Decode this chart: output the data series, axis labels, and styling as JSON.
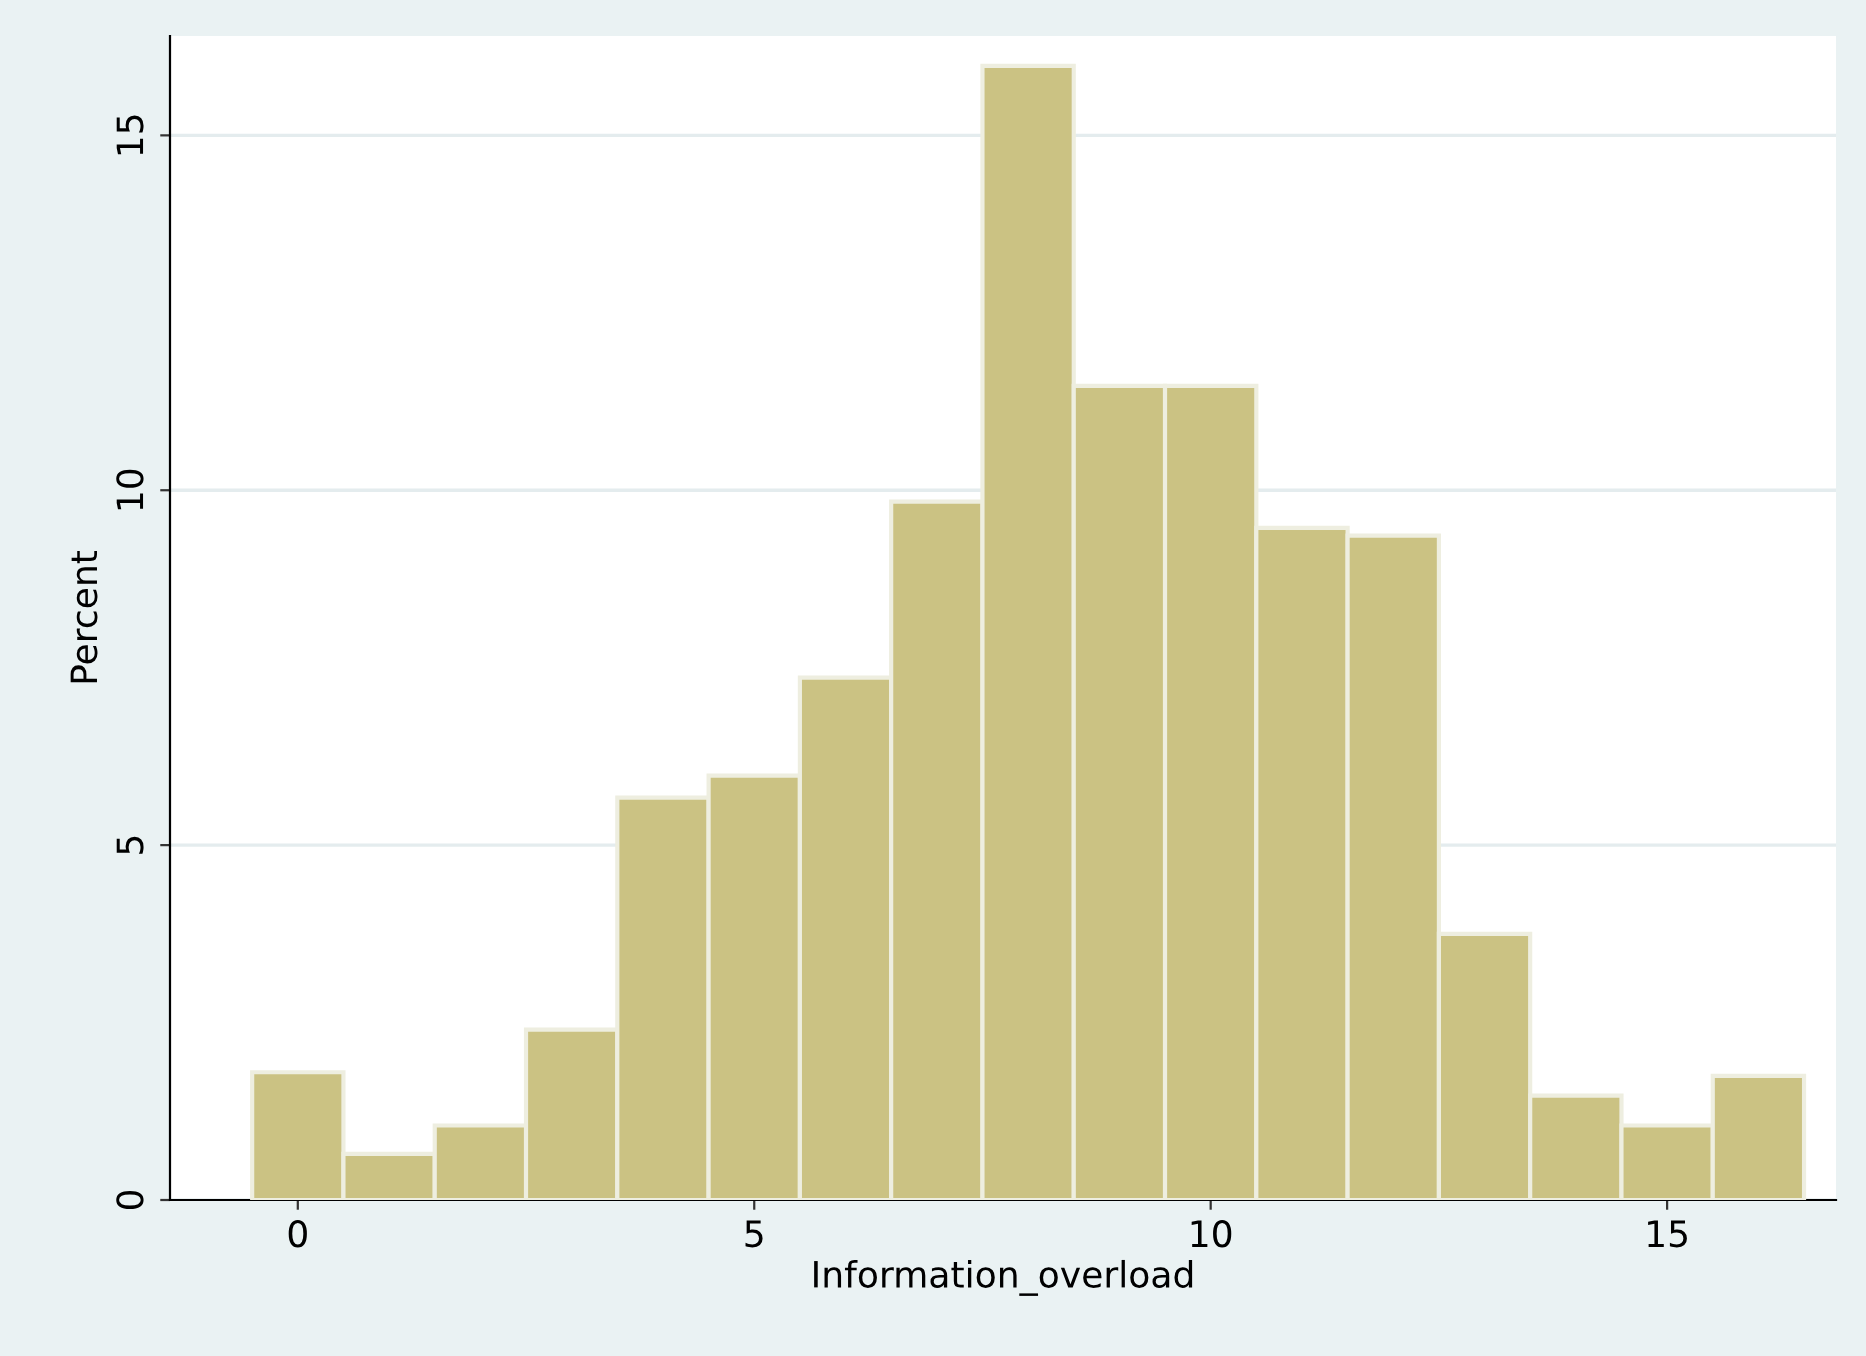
{
  "chart_data": {
    "type": "histogram",
    "xlabel": "Information_overload",
    "ylabel": "Percent",
    "bins": [
      -0.5,
      0.5,
      1.5,
      2.5,
      3.5,
      4.5,
      5.5,
      6.5,
      7.5,
      8.5,
      9.5,
      10.5,
      11.5,
      12.5,
      13.5,
      14.5,
      15.5,
      16.5
    ],
    "values": [
      1.8,
      0.65,
      1.05,
      2.4,
      5.67,
      5.98,
      7.36,
      9.84,
      15.98,
      11.47,
      11.47,
      9.47,
      9.36,
      3.75,
      1.47,
      1.05,
      1.75
    ],
    "color": "#cbc283",
    "xlim": [
      -1.4,
      16.85
    ],
    "ylim": [
      0,
      16.4
    ],
    "xticks": [
      0,
      5,
      10,
      15
    ],
    "yticks": [
      0,
      5,
      10,
      15
    ],
    "grid": "y",
    "legend": false
  }
}
